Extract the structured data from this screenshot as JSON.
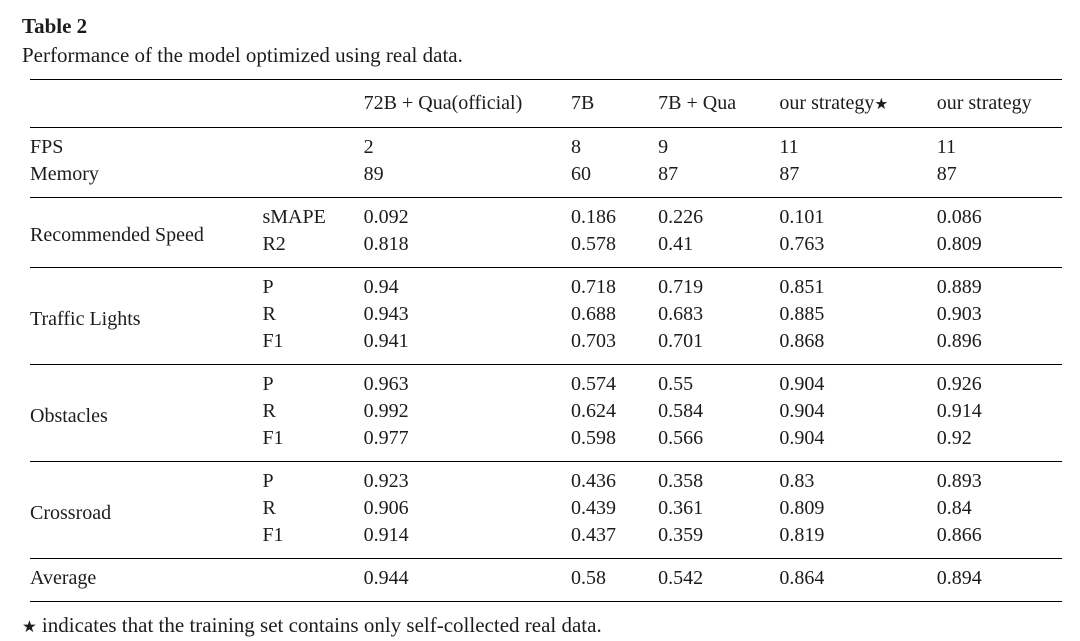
{
  "title": "Table 2",
  "caption": "Performance of the model optimized using real data.",
  "table": {
    "col_headers": [
      {
        "label": "72B + Qua(official)",
        "star": ""
      },
      {
        "label": "7B",
        "star": ""
      },
      {
        "label": "7B + Qua",
        "star": ""
      },
      {
        "label": "our strategy",
        "star": "★"
      },
      {
        "label": "our strategy",
        "star": ""
      }
    ],
    "simple_rows": [
      {
        "label": "FPS",
        "values": [
          "2",
          "8",
          "9",
          "11",
          "11"
        ]
      },
      {
        "label": "Memory",
        "values": [
          "89",
          "60",
          "87",
          "87",
          "87"
        ]
      }
    ],
    "groups": [
      {
        "label": "Recommended Speed",
        "rows": [
          {
            "metric": "sMAPE",
            "values": [
              "0.092",
              "0.186",
              "0.226",
              "0.101",
              "0.086"
            ]
          },
          {
            "metric": "R2",
            "values": [
              "0.818",
              "0.578",
              "0.41",
              "0.763",
              "0.809"
            ]
          }
        ]
      },
      {
        "label": "Traffic Lights",
        "rows": [
          {
            "metric": "P",
            "values": [
              "0.94",
              "0.718",
              "0.719",
              "0.851",
              "0.889"
            ]
          },
          {
            "metric": "R",
            "values": [
              "0.943",
              "0.688",
              "0.683",
              "0.885",
              "0.903"
            ]
          },
          {
            "metric": "F1",
            "values": [
              "0.941",
              "0.703",
              "0.701",
              "0.868",
              "0.896"
            ]
          }
        ]
      },
      {
        "label": "Obstacles",
        "rows": [
          {
            "metric": "P",
            "values": [
              "0.963",
              "0.574",
              "0.55",
              "0.904",
              "0.926"
            ]
          },
          {
            "metric": "R",
            "values": [
              "0.992",
              "0.624",
              "0.584",
              "0.904",
              "0.914"
            ]
          },
          {
            "metric": "F1",
            "values": [
              "0.977",
              "0.598",
              "0.566",
              "0.904",
              "0.92"
            ]
          }
        ]
      },
      {
        "label": "Crossroad",
        "rows": [
          {
            "metric": "P",
            "values": [
              "0.923",
              "0.436",
              "0.358",
              "0.83",
              "0.893"
            ]
          },
          {
            "metric": "R",
            "values": [
              "0.906",
              "0.439",
              "0.361",
              "0.809",
              "0.84"
            ]
          },
          {
            "metric": "F1",
            "values": [
              "0.914",
              "0.437",
              "0.359",
              "0.819",
              "0.866"
            ]
          }
        ]
      }
    ],
    "average_row": {
      "label": "Average",
      "values": [
        "0.944",
        "0.58",
        "0.542",
        "0.864",
        "0.894"
      ]
    }
  },
  "footnote": {
    "star": "★",
    "text": " indicates that the training set contains only self-collected real data."
  }
}
